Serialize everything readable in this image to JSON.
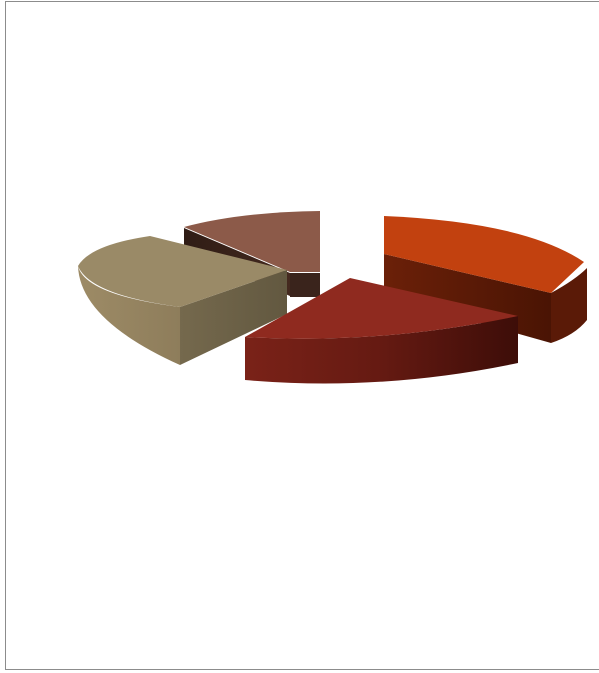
{
  "chart_data": {
    "type": "pie",
    "style": "3d-exploded",
    "title": "",
    "legend": "none",
    "slices": [
      {
        "value": 30,
        "color": "#c2410f",
        "side_color": "#5c1a06"
      },
      {
        "value": 20,
        "color": "#8f2a1f",
        "side_color": "#4a120c"
      },
      {
        "value": 25,
        "color": "#9a8a67",
        "side_color": "#6b5f45"
      },
      {
        "value": 12,
        "color": "#8c5a49",
        "side_color": "#3f2920"
      },
      {
        "value": 13,
        "color": "#ffffff",
        "side_color": "#ffffff"
      }
    ]
  }
}
